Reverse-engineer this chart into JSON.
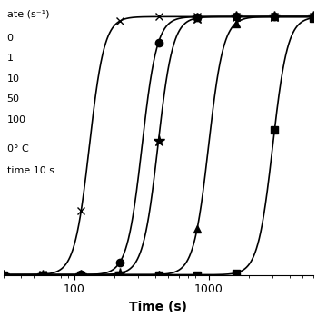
{
  "xlabel": "Time (s)",
  "annotation_line1": "0° C",
  "annotation_line2": "time 10 s",
  "legend_header": "ate (s⁻¹)",
  "legend_entries": [
    "0",
    "1",
    "10",
    "50",
    "100"
  ],
  "series": [
    {
      "label": "10",
      "marker": "x",
      "t50": 130,
      "k": 18,
      "filled": false
    },
    {
      "label": "1",
      "marker": "o",
      "t50": 320,
      "k": 18,
      "filled": true
    },
    {
      "label": "0",
      "marker": "*",
      "t50": 420,
      "k": 18,
      "filled": true
    },
    {
      "label": "50",
      "marker": "^",
      "t50": 1000,
      "k": 18,
      "filled": true
    },
    {
      "label": "100",
      "marker": "s",
      "t50": 3000,
      "k": 18,
      "filled": true
    }
  ],
  "xmin": 30,
  "xmax": 6000,
  "ymin": 0,
  "ymax": 1.05,
  "background_color": "#ffffff",
  "line_color": "#000000"
}
